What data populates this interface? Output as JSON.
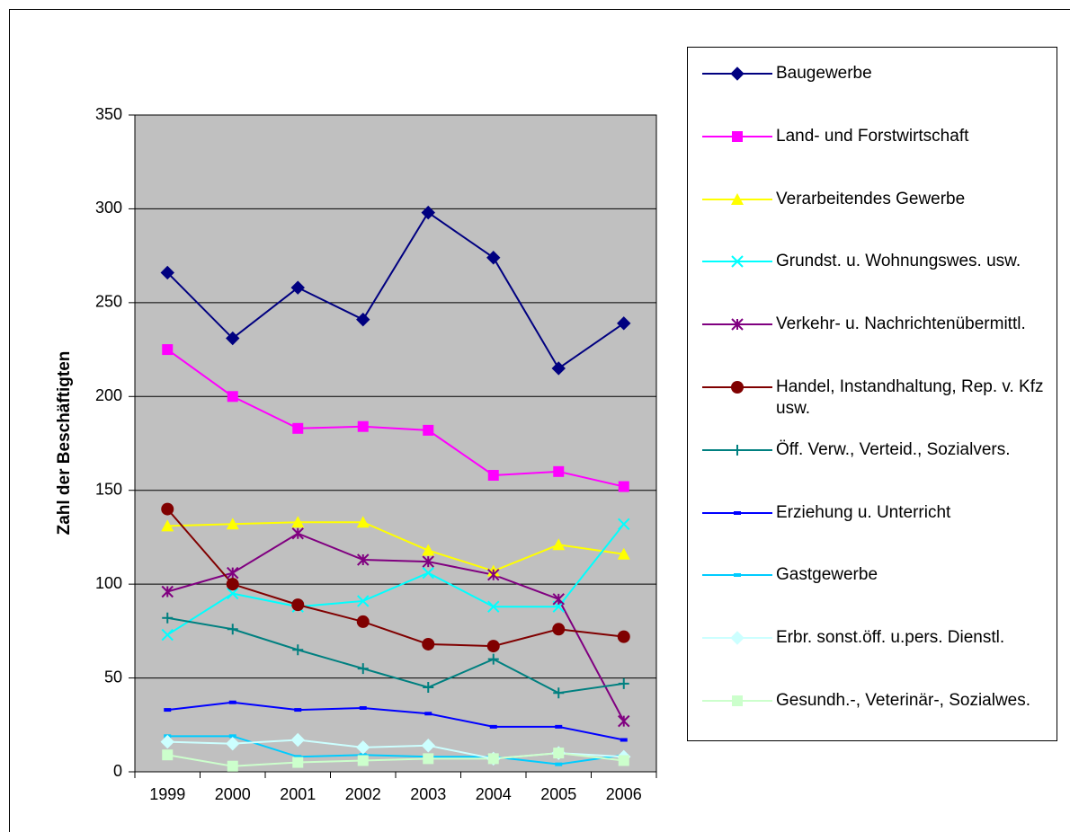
{
  "chart_data": {
    "type": "line",
    "y_label": "Zahl der Beschäftigten",
    "categories": [
      "1999",
      "2000",
      "2001",
      "2002",
      "2003",
      "2004",
      "2005",
      "2006"
    ],
    "ylim": [
      0,
      350
    ],
    "yticks": [
      0,
      50,
      100,
      150,
      200,
      250,
      300,
      350
    ],
    "grid": true,
    "legend": "right",
    "series": [
      {
        "name": "Baugewerbe",
        "color": "#000080",
        "marker": "diamond",
        "values": [
          266,
          231,
          258,
          241,
          298,
          274,
          215,
          239
        ]
      },
      {
        "name": "Land- und Forstwirtschaft",
        "color": "#FF00FF",
        "marker": "square",
        "values": [
          225,
          200,
          183,
          184,
          182,
          158,
          160,
          152
        ]
      },
      {
        "name": "Verarbeitendes Gewerbe",
        "color": "#FFFF00",
        "marker": "triangle",
        "values": [
          131,
          132,
          133,
          133,
          118,
          107,
          121,
          116
        ]
      },
      {
        "name": "Grundst. u. Wohnungswes. usw.",
        "color": "#00FFFF",
        "marker": "x",
        "values": [
          73,
          95,
          88,
          91,
          106,
          88,
          88,
          132
        ]
      },
      {
        "name": "Verkehr- u. Nachrichtenübermittl.",
        "color": "#800080",
        "marker": "star",
        "values": [
          96,
          106,
          127,
          113,
          112,
          105,
          92,
          27
        ]
      },
      {
        "name": "Handel, Instandhaltung, Rep. v. Kfz usw.",
        "color": "#800000",
        "marker": "circle",
        "values": [
          140,
          100,
          89,
          80,
          68,
          67,
          76,
          72
        ]
      },
      {
        "name": "Öff. Verw., Verteid., Sozialvers.",
        "color": "#008080",
        "marker": "plus",
        "values": [
          82,
          76,
          65,
          55,
          45,
          60,
          42,
          47
        ]
      },
      {
        "name": "Erziehung u. Unterricht",
        "color": "#0000FF",
        "marker": "dash",
        "values": [
          33,
          37,
          33,
          34,
          31,
          24,
          24,
          17
        ]
      },
      {
        "name": "Gastgewerbe",
        "color": "#00CCFF",
        "marker": "dash",
        "values": [
          19,
          19,
          8,
          9,
          8,
          8,
          4,
          9
        ]
      },
      {
        "name": "Erbr. sonst.öff. u.pers. Dienstl.",
        "color": "#CCFFFF",
        "marker": "diamond",
        "values": [
          16,
          15,
          17,
          13,
          14,
          7,
          10,
          8
        ]
      },
      {
        "name": "Gesundh.-, Veterinär-, Sozialwes.",
        "color": "#CCFFCC",
        "marker": "square",
        "values": [
          9,
          3,
          5,
          6,
          7,
          7,
          10,
          6
        ]
      }
    ]
  }
}
